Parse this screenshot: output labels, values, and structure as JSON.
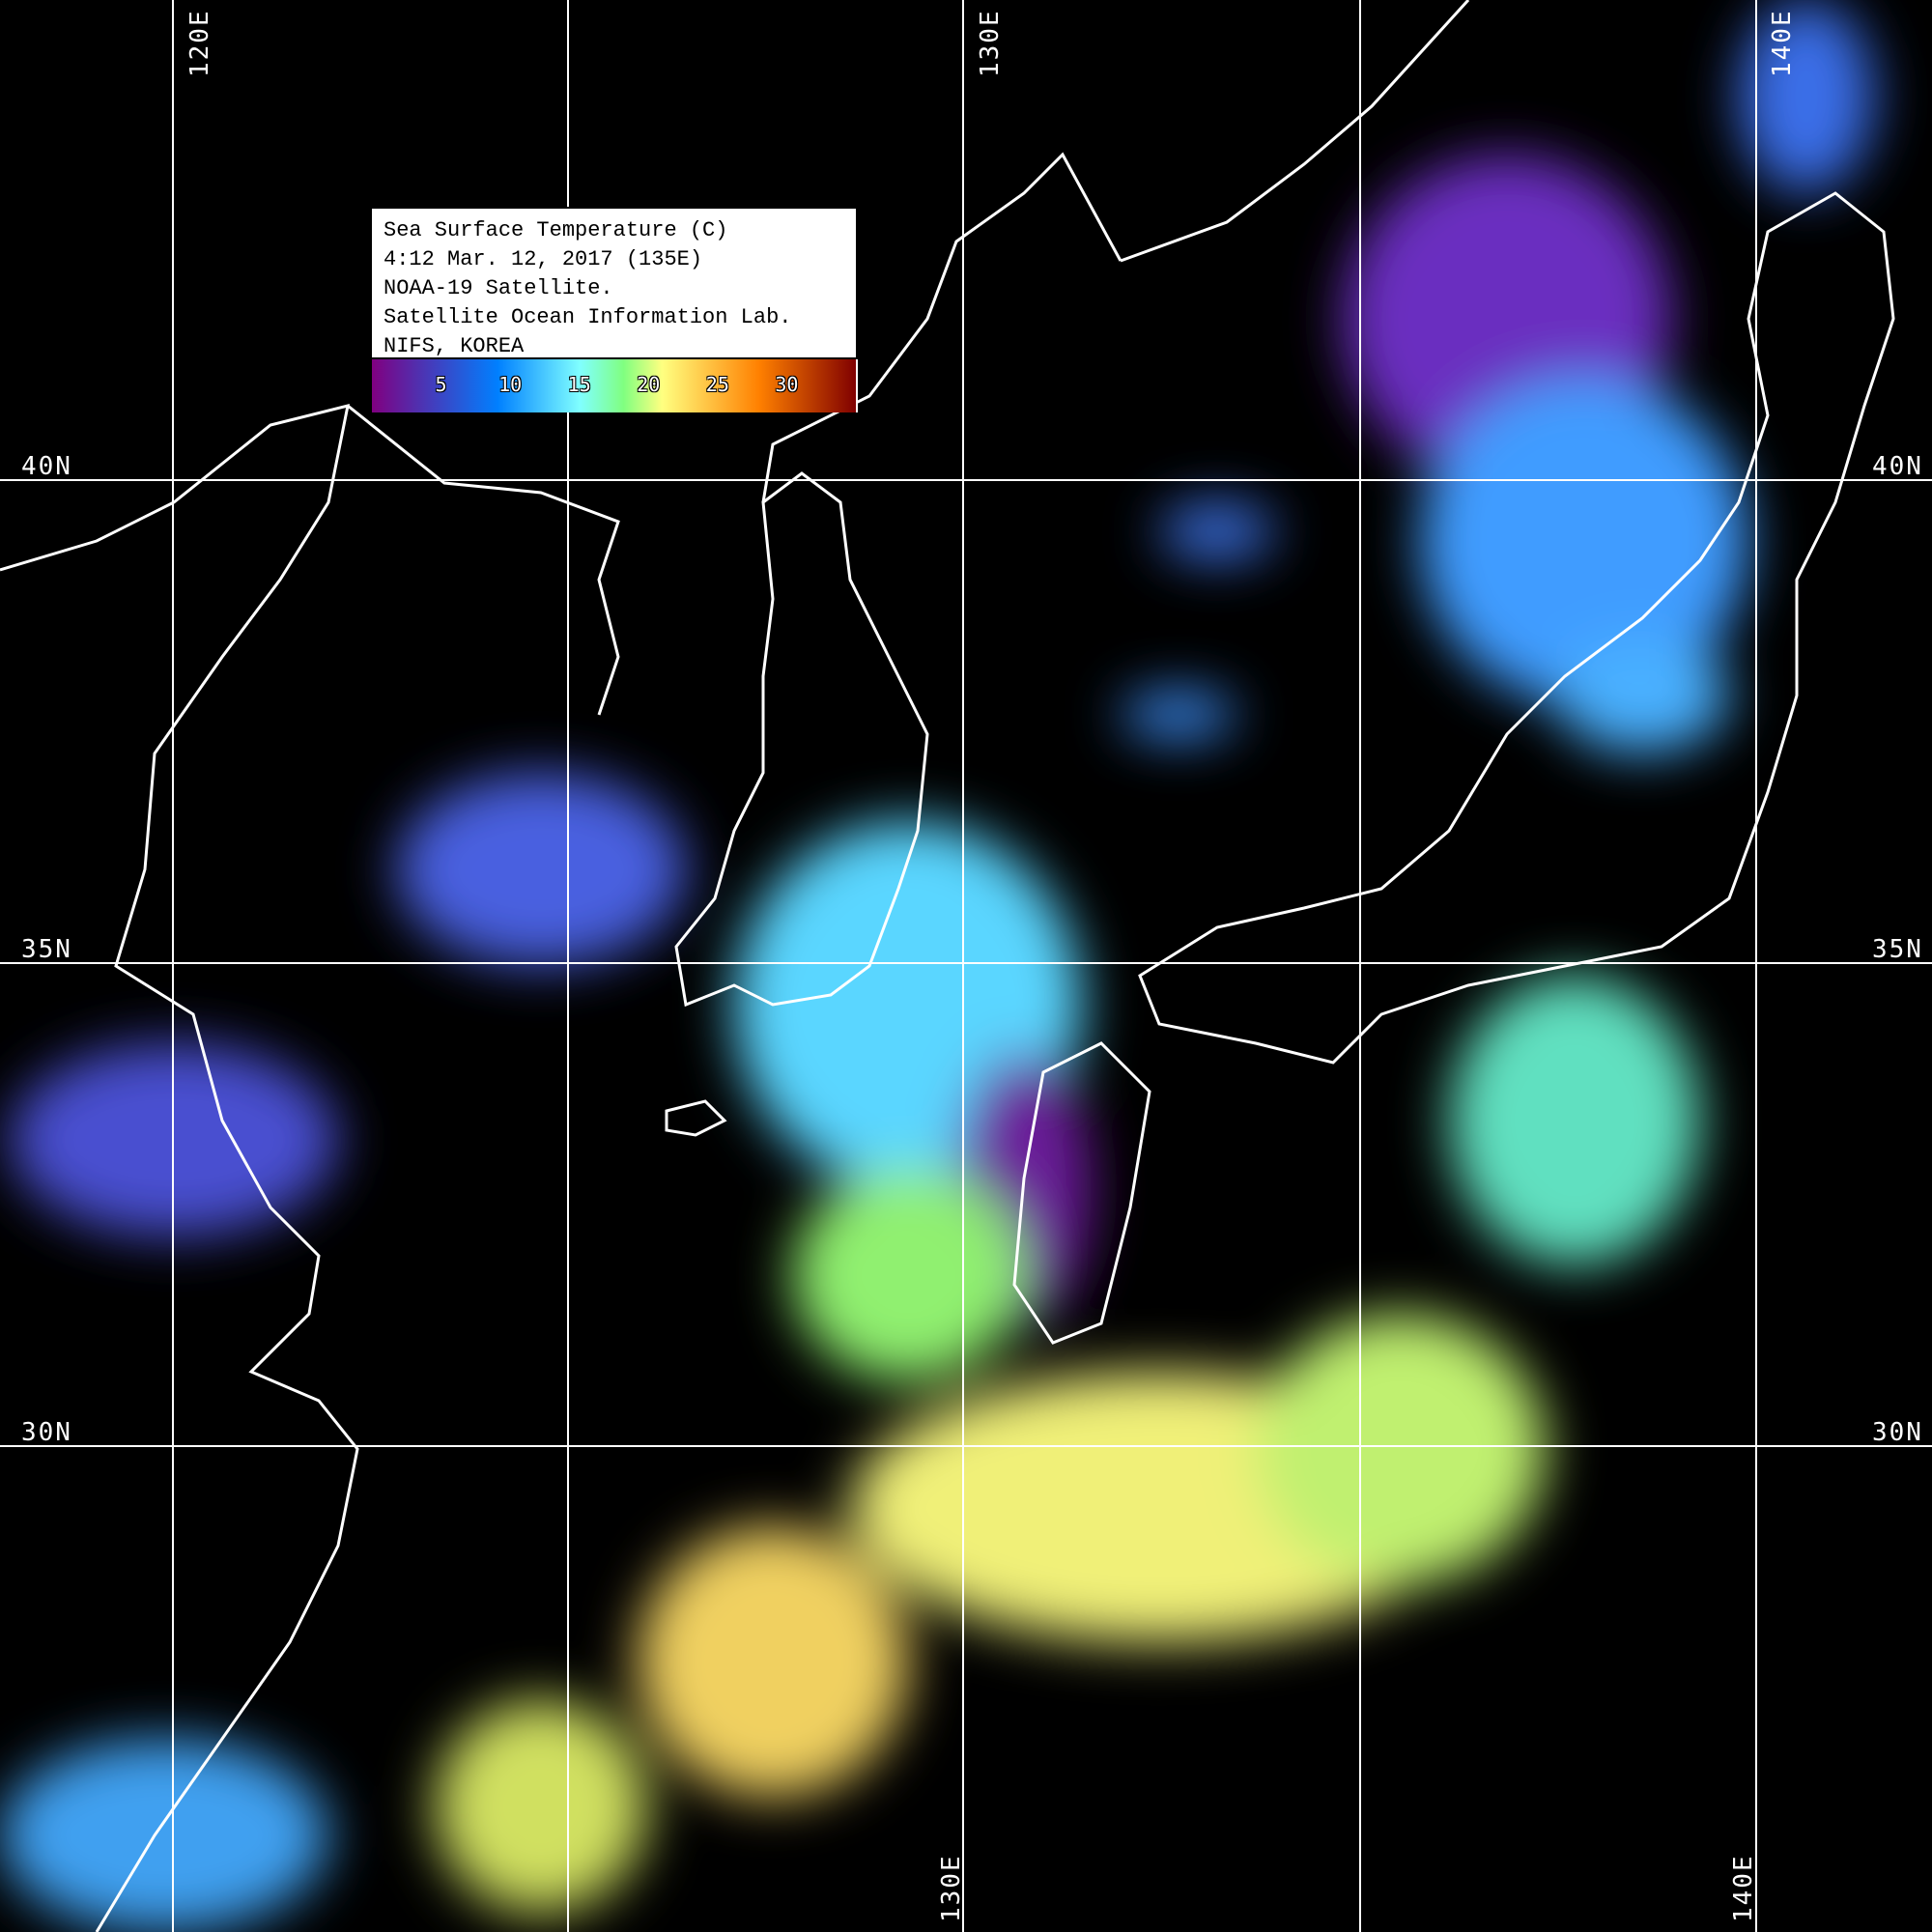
{
  "legend": {
    "lines": [
      "Sea Surface Temperature (C)",
      "4:12 Mar. 12, 2017 (135E)",
      "NOAA-19 Satellite.",
      "Satellite Ocean Information Lab.",
      "NIFS, KOREA"
    ],
    "colorbar": {
      "range": [
        0,
        35
      ],
      "ticks": [
        "5",
        "10",
        "15",
        "20",
        "25",
        "30"
      ],
      "tick_values": [
        5,
        10,
        15,
        20,
        25,
        30
      ],
      "colors": [
        "#800080",
        "#0080ff",
        "#80ffff",
        "#80ff80",
        "#ffff80",
        "#ff8000",
        "#800000"
      ]
    }
  },
  "grid": {
    "longitudes": [
      120,
      125,
      130,
      135,
      140
    ],
    "latitudes": [
      40,
      35,
      30
    ],
    "top_labels": [
      "120E",
      "130E",
      "140E"
    ],
    "bottom_labels": [
      "130E",
      "140E"
    ],
    "left_labels": [
      "40N",
      "35N",
      "30N"
    ],
    "right_labels": [
      "40N",
      "35N",
      "30N"
    ]
  },
  "colors": {
    "background": "#000000",
    "coastline": "#ffffff",
    "grid": "#ffffff",
    "contour": "#000000"
  }
}
